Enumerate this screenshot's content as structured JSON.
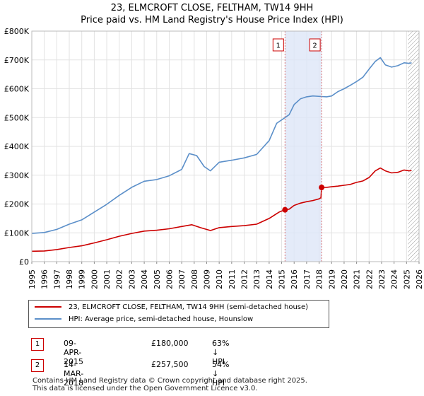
{
  "title_line1": "23, ELMCROFT CLOSE, FELTHAM, TW14 9HH",
  "title_line2": "Price paid vs. HM Land Registry's House Price Index (HPI)",
  "colors": {
    "price_line": "#cc0000",
    "hpi_line": "#5b8fc9",
    "shade": "#dde6f7",
    "marker_dash": "#dd7777",
    "hatch": "#999999",
    "grid": "#e2e2e2"
  },
  "chart_data": {
    "type": "line",
    "title": "23, ELMCROFT CLOSE, FELTHAM, TW14 9HH — Price paid vs. HM Land Registry's House Price Index (HPI)",
    "xlabel": "",
    "ylabel": "",
    "xlim": [
      1995,
      2026
    ],
    "ylim": [
      0,
      800000
    ],
    "x_ticks": [
      "1995",
      "1996",
      "1997",
      "1998",
      "1999",
      "2000",
      "2001",
      "2002",
      "2003",
      "2004",
      "2005",
      "2006",
      "2007",
      "2008",
      "2009",
      "2010",
      "2011",
      "2012",
      "2013",
      "2014",
      "2015",
      "2016",
      "2017",
      "2018",
      "2019",
      "2020",
      "2021",
      "2022",
      "2023",
      "2024",
      "2025",
      "2026"
    ],
    "y_ticks": [
      {
        "value": 0,
        "label": "£0"
      },
      {
        "value": 100000,
        "label": "£100K"
      },
      {
        "value": 200000,
        "label": "£200K"
      },
      {
        "value": 300000,
        "label": "£300K"
      },
      {
        "value": 400000,
        "label": "£400K"
      },
      {
        "value": 500000,
        "label": "£500K"
      },
      {
        "value": 600000,
        "label": "£600K"
      },
      {
        "value": 700000,
        "label": "£700K"
      },
      {
        "value": 800000,
        "label": "£800K"
      }
    ],
    "grid": true,
    "shaded_period": [
      2015.27,
      2018.2
    ],
    "forecast_from": 2025.1,
    "series": [
      {
        "name": "23, ELMCROFT CLOSE, FELTHAM, TW14 9HH (semi-detached house)",
        "color": "#cc0000",
        "points": [
          [
            1995.0,
            36000
          ],
          [
            1996.0,
            37000
          ],
          [
            1997.0,
            42000
          ],
          [
            1998.0,
            49000
          ],
          [
            1999.0,
            55000
          ],
          [
            2000.0,
            65000
          ],
          [
            2001.0,
            76000
          ],
          [
            2002.0,
            88000
          ],
          [
            2003.0,
            98000
          ],
          [
            2004.0,
            106000
          ],
          [
            2005.0,
            109000
          ],
          [
            2006.0,
            114000
          ],
          [
            2007.0,
            122000
          ],
          [
            2007.8,
            128000
          ],
          [
            2008.5,
            118000
          ],
          [
            2009.3,
            108000
          ],
          [
            2010.0,
            118000
          ],
          [
            2011.0,
            122000
          ],
          [
            2012.0,
            125000
          ],
          [
            2013.0,
            130000
          ],
          [
            2014.0,
            150000
          ],
          [
            2014.8,
            172000
          ],
          [
            2015.27,
            180000
          ],
          [
            2015.6,
            182000
          ],
          [
            2016.0,
            195000
          ],
          [
            2016.5,
            203000
          ],
          [
            2017.0,
            208000
          ],
          [
            2017.5,
            212000
          ],
          [
            2018.0,
            218000
          ],
          [
            2018.15,
            222000
          ],
          [
            2018.2,
            257500
          ],
          [
            2018.6,
            258000
          ],
          [
            2019.0,
            260000
          ],
          [
            2019.5,
            262000
          ],
          [
            2020.0,
            265000
          ],
          [
            2020.5,
            268000
          ],
          [
            2021.0,
            275000
          ],
          [
            2021.5,
            280000
          ],
          [
            2022.0,
            292000
          ],
          [
            2022.5,
            315000
          ],
          [
            2022.9,
            325000
          ],
          [
            2023.3,
            315000
          ],
          [
            2023.8,
            308000
          ],
          [
            2024.3,
            310000
          ],
          [
            2024.8,
            318000
          ],
          [
            2025.2,
            315000
          ],
          [
            2025.4,
            316000
          ]
        ]
      },
      {
        "name": "HPI: Average price, semi-detached house, Hounslow",
        "color": "#5b8fc9",
        "points": [
          [
            1995.0,
            98000
          ],
          [
            1996.0,
            101000
          ],
          [
            1997.0,
            112000
          ],
          [
            1998.0,
            130000
          ],
          [
            1999.0,
            145000
          ],
          [
            2000.0,
            172000
          ],
          [
            2001.0,
            199000
          ],
          [
            2002.0,
            230000
          ],
          [
            2003.0,
            258000
          ],
          [
            2004.0,
            279000
          ],
          [
            2005.0,
            285000
          ],
          [
            2006.0,
            298000
          ],
          [
            2007.0,
            320000
          ],
          [
            2007.6,
            375000
          ],
          [
            2008.2,
            368000
          ],
          [
            2008.8,
            330000
          ],
          [
            2009.3,
            315000
          ],
          [
            2010.0,
            345000
          ],
          [
            2011.0,
            352000
          ],
          [
            2012.0,
            360000
          ],
          [
            2013.0,
            372000
          ],
          [
            2014.0,
            420000
          ],
          [
            2014.6,
            480000
          ],
          [
            2015.27,
            500000
          ],
          [
            2015.6,
            510000
          ],
          [
            2016.0,
            545000
          ],
          [
            2016.5,
            565000
          ],
          [
            2017.0,
            572000
          ],
          [
            2017.5,
            575000
          ],
          [
            2018.2,
            573000
          ],
          [
            2018.6,
            572000
          ],
          [
            2019.0,
            575000
          ],
          [
            2019.5,
            590000
          ],
          [
            2020.0,
            600000
          ],
          [
            2020.5,
            612000
          ],
          [
            2021.0,
            625000
          ],
          [
            2021.5,
            640000
          ],
          [
            2022.0,
            668000
          ],
          [
            2022.5,
            695000
          ],
          [
            2022.9,
            708000
          ],
          [
            2023.3,
            683000
          ],
          [
            2023.8,
            675000
          ],
          [
            2024.3,
            680000
          ],
          [
            2024.8,
            690000
          ],
          [
            2025.2,
            688000
          ],
          [
            2025.4,
            690000
          ]
        ]
      }
    ],
    "annotations": [
      {
        "label": "1",
        "x": 2015.27,
        "y": 180000
      },
      {
        "label": "2",
        "x": 2018.2,
        "y": 257500
      }
    ]
  },
  "legend": {
    "items": [
      {
        "label": "23, ELMCROFT CLOSE, FELTHAM, TW14 9HH (semi-detached house)",
        "color": "#cc0000"
      },
      {
        "label": "HPI: Average price, semi-detached house, Hounslow",
        "color": "#5b8fc9"
      }
    ]
  },
  "transactions": [
    {
      "num": "1",
      "date": "09-APR-2015",
      "price": "£180,000",
      "hpi": "63% ↓ HPI"
    },
    {
      "num": "2",
      "date": "14-MAR-2018",
      "price": "£257,500",
      "hpi": "54% ↓ HPI"
    }
  ],
  "footer": {
    "line1": "Contains HM Land Registry data © Crown copyright and database right 2025.",
    "line2": "This data is licensed under the Open Government Licence v3.0."
  }
}
